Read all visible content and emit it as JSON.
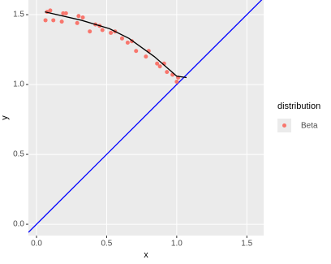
{
  "chart_data": {
    "type": "scatter",
    "x_label": "x",
    "y_label": "y",
    "legend_title": "distribution",
    "legend_position": "right",
    "xlim": [
      -0.058,
      1.62
    ],
    "ylim": [
      -0.081,
      1.605
    ],
    "xticks": [
      {
        "value": 0,
        "label": "0.0"
      },
      0.5,
      {
        "value": 1,
        "label": "1.0"
      },
      1.5
    ],
    "yticks": [
      {
        "value": 0,
        "label": "0.0"
      },
      0.5,
      {
        "value": 1,
        "label": "1.0"
      },
      1.5
    ],
    "grid": true,
    "series": [
      {
        "name": "Beta",
        "color": "#f8766d",
        "x": [
          0.064,
          0.075,
          0.098,
          0.12,
          0.18,
          0.19,
          0.21,
          0.29,
          0.3,
          0.33,
          0.38,
          0.42,
          0.45,
          0.47,
          0.53,
          0.56,
          0.61,
          0.65,
          0.68,
          0.71,
          0.78,
          0.8,
          0.86,
          0.88,
          0.91,
          0.93,
          0.97,
          1.0,
          1.01
        ],
        "values": [
          1.46,
          1.52,
          1.53,
          1.46,
          1.45,
          1.51,
          1.51,
          1.44,
          1.49,
          1.48,
          1.38,
          1.43,
          1.42,
          1.39,
          1.37,
          1.38,
          1.33,
          1.3,
          1.31,
          1.24,
          1.2,
          1.24,
          1.15,
          1.13,
          1.15,
          1.09,
          1.07,
          1.02,
          1.05
        ]
      }
    ],
    "fit": {
      "color": "#000000",
      "x": [
        0.06,
        0.32,
        0.52,
        0.66,
        0.84,
        1.0,
        1.07
      ],
      "values": [
        1.52,
        1.46,
        1.4,
        1.33,
        1.2,
        1.06,
        1.05
      ]
    },
    "reference_line": {
      "color": "#0000ff",
      "slope": 1,
      "intercept": 0
    }
  }
}
